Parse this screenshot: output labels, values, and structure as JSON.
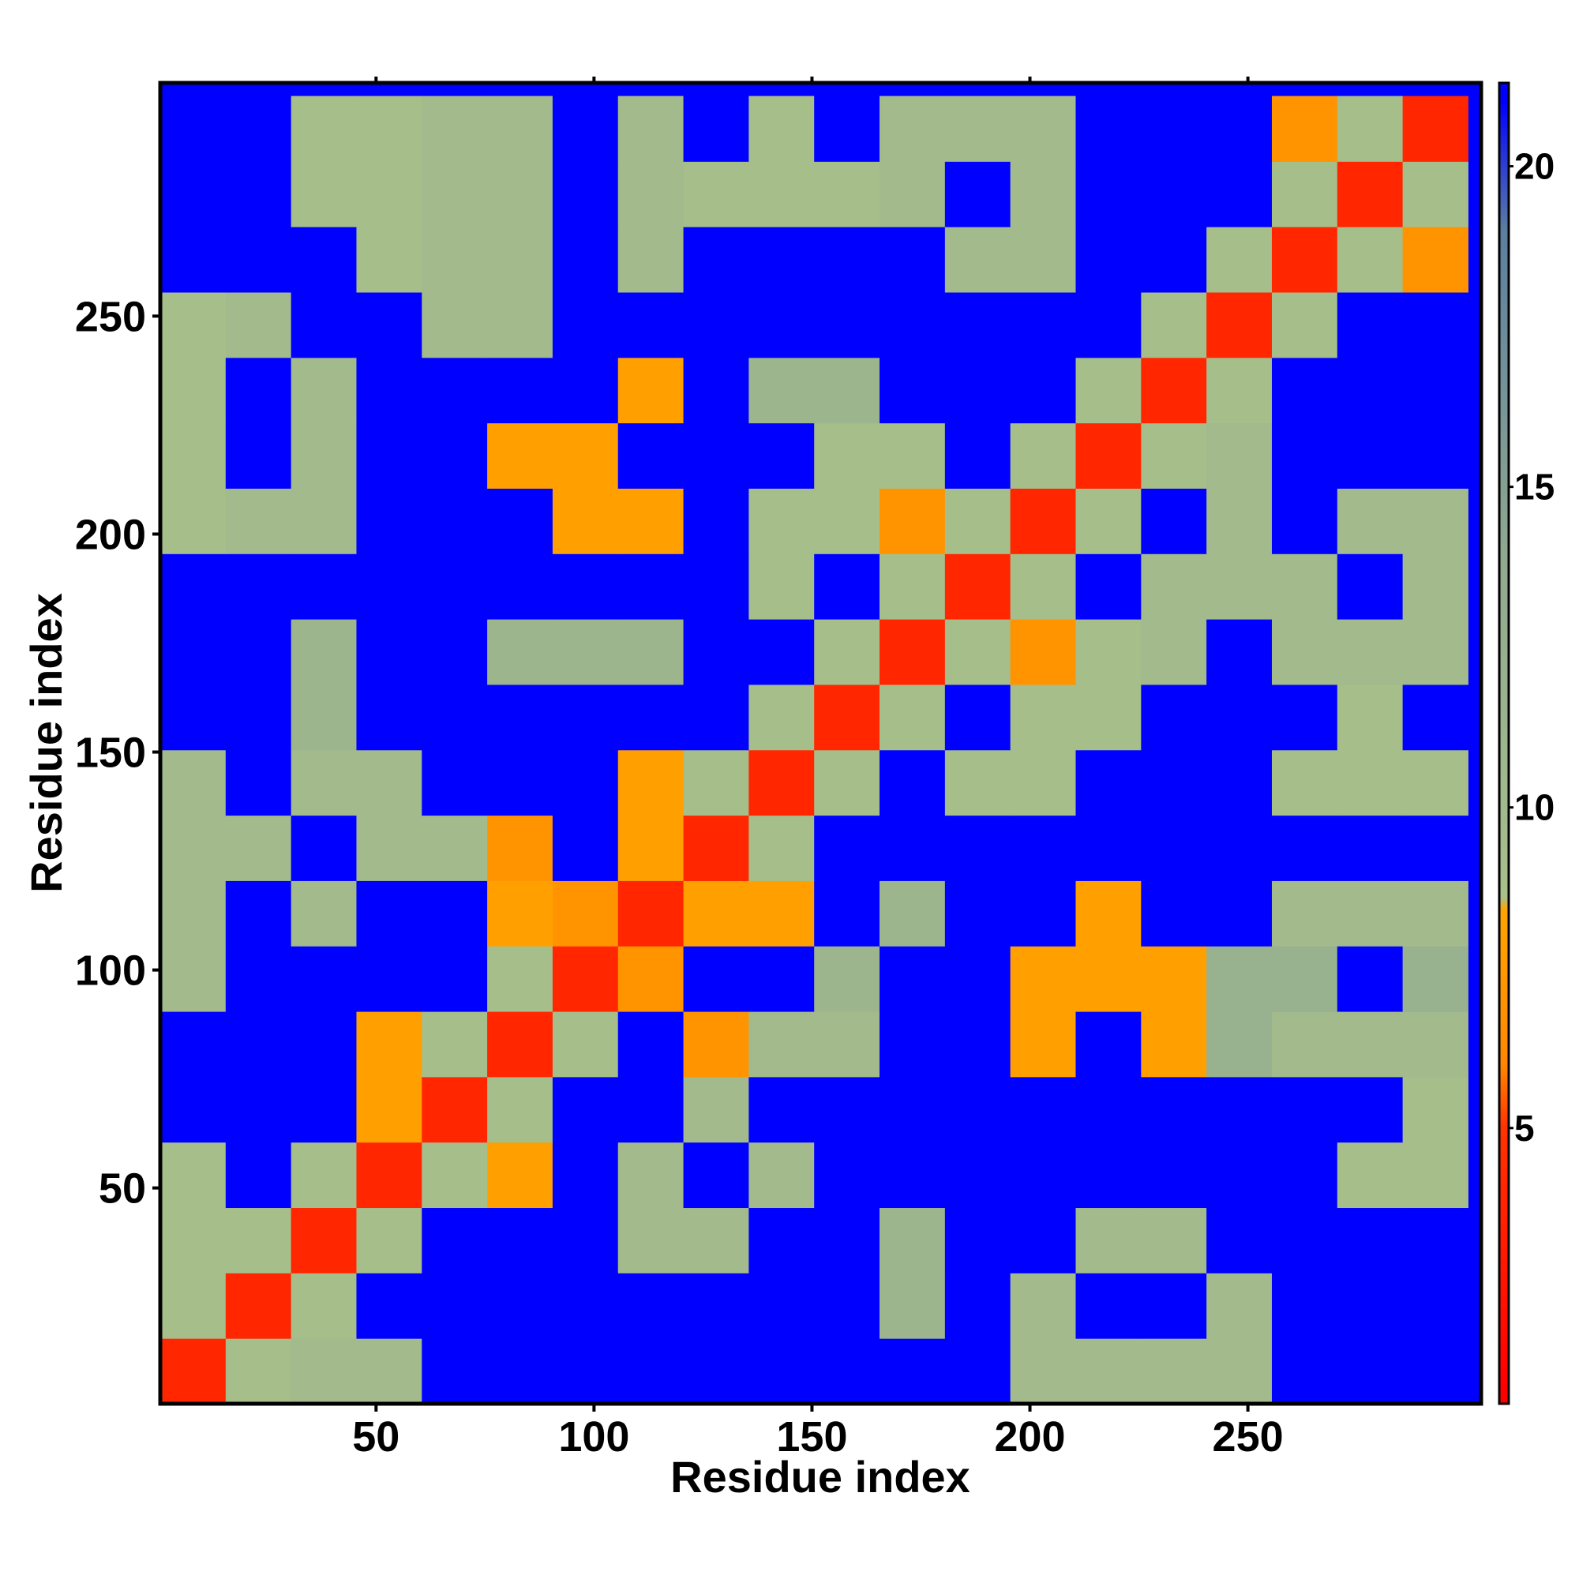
{
  "chart_data": {
    "type": "heatmap",
    "x_label": "Residue index",
    "y_label": "Residue index",
    "x": [
      8,
      23,
      38,
      53,
      68,
      83,
      98,
      113,
      128,
      143,
      158,
      173,
      188,
      203,
      218,
      233,
      248,
      263,
      278,
      293
    ],
    "y": [
      8,
      23,
      38,
      53,
      68,
      83,
      98,
      113,
      128,
      143,
      158,
      173,
      188,
      203,
      218,
      233,
      248,
      263,
      278,
      293
    ],
    "z": [
      [
        4,
        9,
        10,
        10,
        22,
        22,
        22,
        22,
        22,
        22,
        22,
        22,
        22,
        10,
        10,
        10,
        10,
        22,
        22,
        22
      ],
      [
        9,
        4,
        9,
        22,
        22,
        22,
        22,
        22,
        22,
        22,
        22,
        11,
        22,
        10,
        22,
        22,
        10,
        22,
        22,
        22
      ],
      [
        9,
        9,
        4,
        9,
        22,
        22,
        22,
        10,
        10,
        22,
        22,
        11,
        22,
        22,
        10,
        10,
        22,
        22,
        22,
        22
      ],
      [
        9,
        22,
        9,
        4,
        9,
        8,
        22,
        10,
        22,
        10,
        22,
        22,
        22,
        22,
        22,
        22,
        22,
        22,
        9,
        9
      ],
      [
        22,
        22,
        22,
        8,
        4,
        9,
        22,
        22,
        10,
        22,
        22,
        22,
        22,
        22,
        22,
        22,
        22,
        22,
        22,
        9
      ],
      [
        22,
        22,
        22,
        8,
        9,
        4,
        9,
        22,
        7,
        10,
        10,
        22,
        22,
        8,
        22,
        8,
        12,
        10,
        10,
        10
      ],
      [
        10,
        22,
        22,
        22,
        22,
        9,
        4,
        7,
        22,
        22,
        11,
        22,
        22,
        8,
        8,
        8,
        12,
        12,
        22,
        12
      ],
      [
        10,
        22,
        10,
        22,
        22,
        8,
        7,
        4,
        8,
        8,
        22,
        11,
        22,
        22,
        8,
        22,
        22,
        10,
        10,
        10
      ],
      [
        10,
        10,
        22,
        10,
        10,
        7,
        22,
        8,
        4,
        9,
        22,
        22,
        22,
        22,
        22,
        22,
        22,
        22,
        22,
        22
      ],
      [
        10,
        22,
        10,
        10,
        22,
        22,
        22,
        8,
        9,
        4,
        9,
        22,
        9,
        9,
        22,
        22,
        22,
        9,
        9,
        9
      ],
      [
        22,
        22,
        11,
        22,
        22,
        22,
        22,
        22,
        22,
        9,
        4,
        9,
        22,
        9,
        9,
        22,
        22,
        22,
        9,
        22
      ],
      [
        22,
        22,
        11,
        22,
        22,
        11,
        11,
        11,
        22,
        22,
        9,
        4,
        9,
        7,
        9,
        10,
        22,
        10,
        10,
        10
      ],
      [
        22,
        22,
        22,
        22,
        22,
        22,
        22,
        22,
        22,
        9,
        22,
        9,
        4,
        9,
        22,
        10,
        10,
        10,
        22,
        10
      ],
      [
        9,
        10,
        10,
        22,
        22,
        22,
        8,
        8,
        22,
        9,
        9,
        7,
        9,
        4,
        9,
        22,
        10,
        22,
        10,
        10
      ],
      [
        9,
        22,
        10,
        22,
        22,
        8,
        8,
        22,
        22,
        22,
        9,
        9,
        22,
        9,
        4,
        9,
        10,
        22,
        22,
        22
      ],
      [
        9,
        22,
        10,
        22,
        22,
        22,
        22,
        8,
        22,
        11,
        11,
        22,
        22,
        22,
        9,
        4,
        9,
        22,
        22,
        22
      ],
      [
        9,
        10,
        22,
        22,
        10,
        10,
        22,
        22,
        22,
        22,
        22,
        22,
        22,
        22,
        22,
        9,
        4,
        9,
        22,
        22
      ],
      [
        22,
        22,
        22,
        9,
        10,
        10,
        22,
        10,
        22,
        22,
        22,
        22,
        10,
        10,
        22,
        22,
        9,
        4,
        9,
        7
      ],
      [
        22,
        22,
        9,
        9,
        10,
        10,
        22,
        10,
        9,
        9,
        9,
        10,
        22,
        10,
        22,
        22,
        22,
        9,
        4,
        9
      ],
      [
        22,
        22,
        9,
        9,
        10,
        10,
        22,
        10,
        22,
        9,
        22,
        10,
        10,
        10,
        22,
        22,
        22,
        7,
        9,
        4
      ]
    ],
    "xlim": [
      0.5,
      303.5
    ],
    "ylim": [
      0.5,
      303.5
    ],
    "xticks": [
      50,
      100,
      150,
      200,
      250
    ],
    "yticks": [
      50,
      100,
      150,
      200,
      250
    ],
    "clim": [
      0.7,
      21.3
    ],
    "cticks": [
      5,
      10,
      15,
      20
    ],
    "colorscale": [
      {
        "value": 1,
        "color": "#ff0000"
      },
      {
        "value": 5,
        "color": "#ff3300"
      },
      {
        "value": 6,
        "color": "#ff8800"
      },
      {
        "value": 8.4,
        "color": "#ffa500"
      },
      {
        "value": 8.6,
        "color": "#a8c08a"
      },
      {
        "value": 14,
        "color": "#8fa890"
      },
      {
        "value": 19,
        "color": "#5a7fa0"
      },
      {
        "value": 21,
        "color": "#0000ff"
      }
    ]
  }
}
